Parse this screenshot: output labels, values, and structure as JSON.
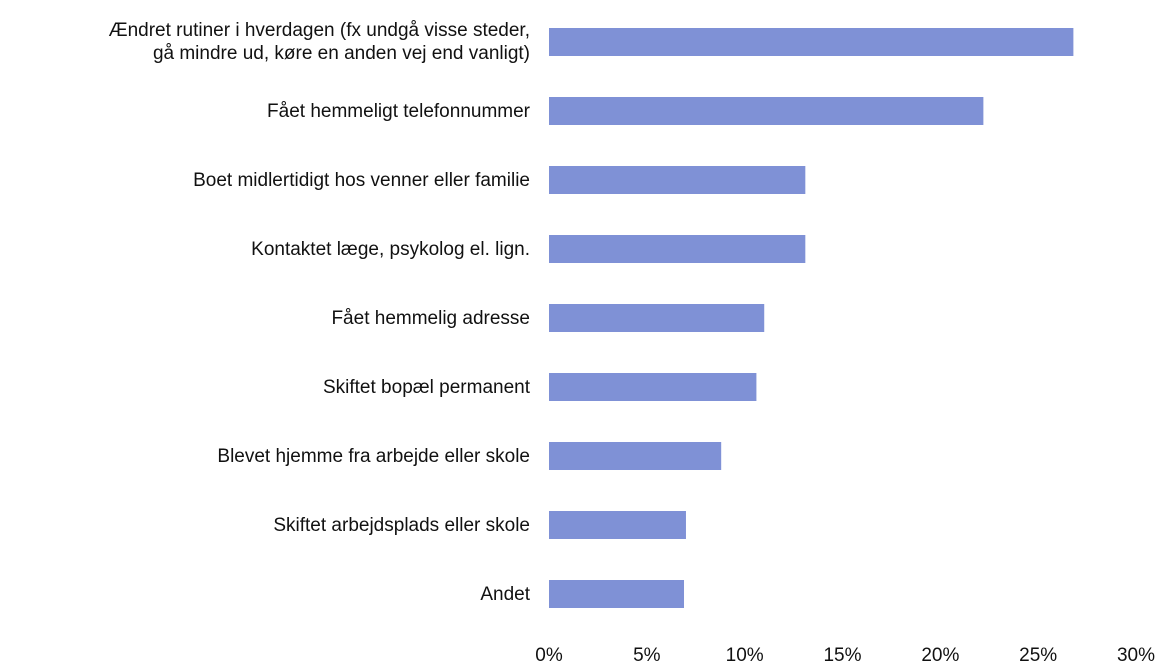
{
  "chart_data": {
    "type": "barh",
    "categories": [
      "Ændret rutiner i hverdagen (fx undgå visse steder,\ngå mindre ud, køre en anden vej end vanligt)",
      "Fået hemmeligt telefonnummer",
      "Boet midlertidigt hos venner eller familie",
      "Kontaktet læge, psykolog el. lign.",
      "Fået hemmelig adresse",
      "Skiftet bopæl permanent",
      "Blevet hjemme fra arbejde eller skole",
      "Skiftet arbejdsplads eller skole",
      "Andet"
    ],
    "values": [
      26.8,
      22.2,
      13.1,
      13.1,
      11.0,
      10.6,
      8.8,
      7.0,
      6.9
    ],
    "color": "#7f91d6",
    "xlim": [
      0,
      30
    ],
    "xticks": [
      {
        "value": 0,
        "label": "0%"
      },
      {
        "value": 5,
        "label": "5%"
      },
      {
        "value": 10,
        "label": "10%"
      },
      {
        "value": 15,
        "label": "15%"
      },
      {
        "value": 20,
        "label": "20%"
      },
      {
        "value": 25,
        "label": "25%"
      },
      {
        "value": 30,
        "label": "30%"
      }
    ],
    "grid": false
  }
}
